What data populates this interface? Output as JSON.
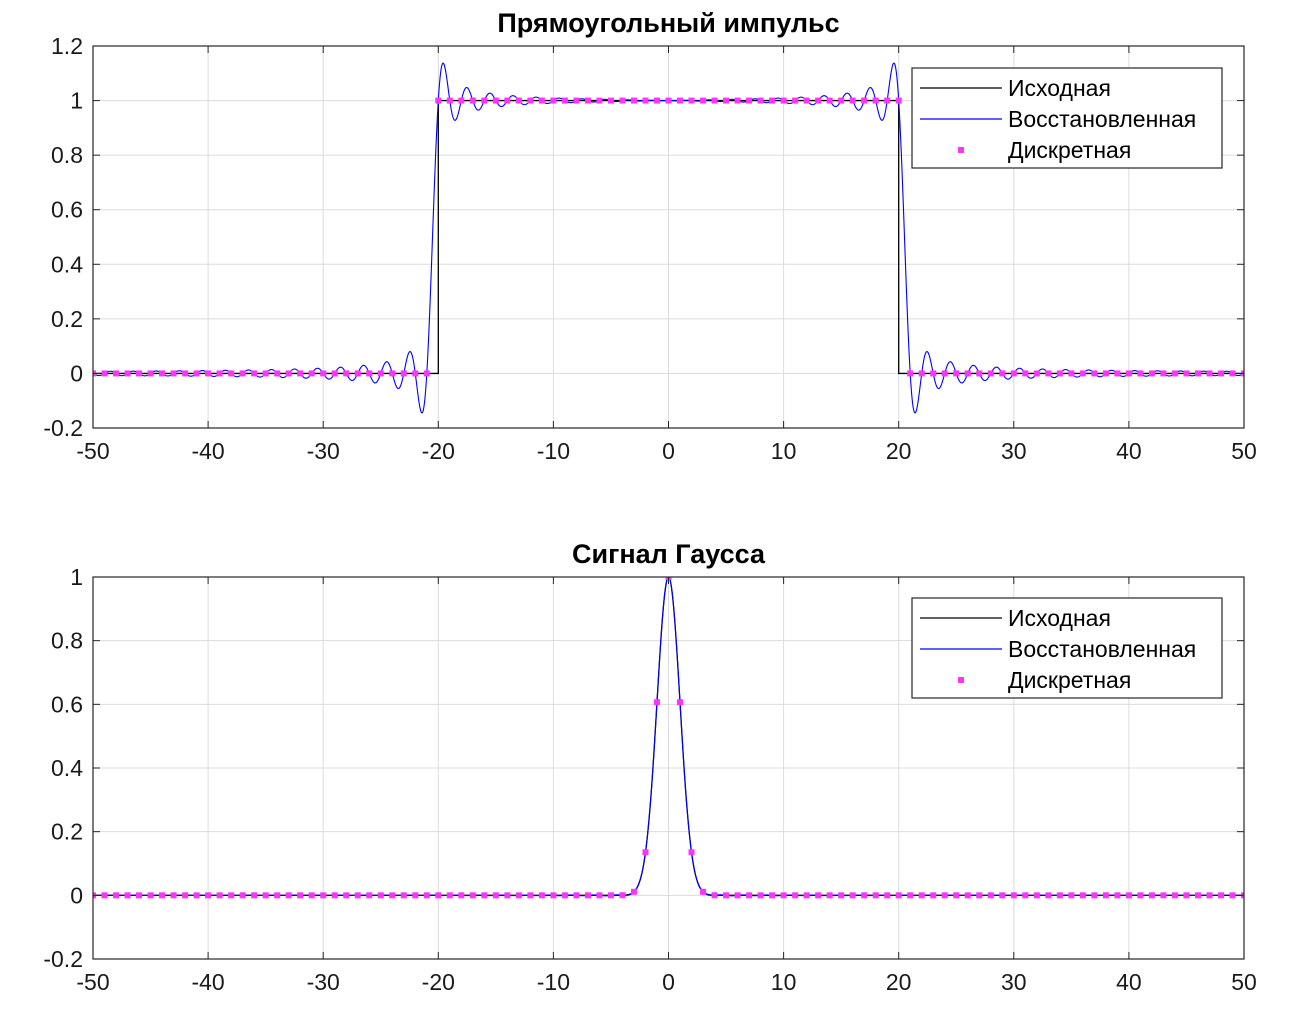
{
  "chart_data": [
    {
      "type": "line",
      "title": "Прямоугольный импульс",
      "xlabel": "",
      "ylabel": "",
      "xlim": [
        -50,
        50
      ],
      "ylim": [
        -0.2,
        1.2
      ],
      "xticks": [
        -50,
        -40,
        -30,
        -20,
        -10,
        0,
        10,
        20,
        30,
        40,
        50
      ],
      "yticks": [
        -0.2,
        0,
        0.2,
        0.4,
        0.6,
        0.8,
        1,
        1.2
      ],
      "grid": true,
      "legend_position": "top-right",
      "signal": {
        "kind": "rect",
        "half_width": 20,
        "amplitude": 1
      },
      "sample_step": 1,
      "series": [
        {
          "name": "Исходная",
          "color": "#000000",
          "style": "line"
        },
        {
          "name": "Восстановленная",
          "color": "#0000ff",
          "style": "line"
        },
        {
          "name": "Дискретная",
          "color": "#ff33ff",
          "style": "marker"
        }
      ]
    },
    {
      "type": "line",
      "title": "Сигнал Гаусса",
      "xlabel": "",
      "ylabel": "",
      "xlim": [
        -50,
        50
      ],
      "ylim": [
        -0.2,
        1
      ],
      "xticks": [
        -50,
        -40,
        -30,
        -20,
        -10,
        0,
        10,
        20,
        30,
        40,
        50
      ],
      "yticks": [
        -0.2,
        0,
        0.2,
        0.4,
        0.6,
        0.8,
        1
      ],
      "grid": true,
      "legend_position": "top-right",
      "signal": {
        "kind": "gauss",
        "sigma": 1,
        "amplitude": 1
      },
      "sample_step": 1,
      "series": [
        {
          "name": "Исходная",
          "color": "#000000",
          "style": "line"
        },
        {
          "name": "Восстановленная",
          "color": "#0000ff",
          "style": "line"
        },
        {
          "name": "Дискретная",
          "color": "#ff33ff",
          "style": "marker"
        }
      ]
    }
  ]
}
